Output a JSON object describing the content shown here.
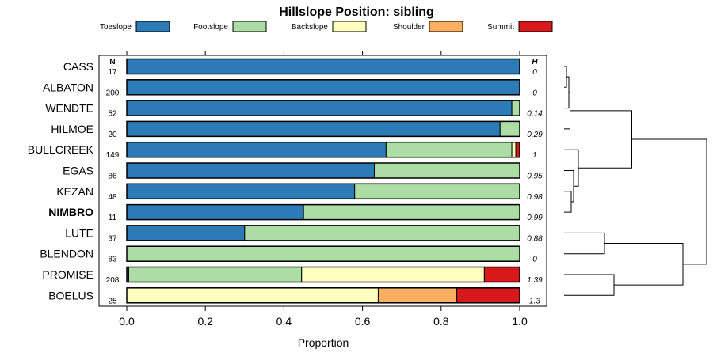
{
  "chart_data": {
    "type": "bar",
    "orientation": "horizontal",
    "stacked": true,
    "title": "Hillslope Position: sibling",
    "xlabel": "Proportion",
    "ylabel": "",
    "xlim": [
      0,
      1
    ],
    "xticks": [
      "0.0",
      "0.2",
      "0.4",
      "0.6",
      "0.8",
      "1.0"
    ],
    "n_header": "N",
    "h_header": "H",
    "legend": [
      {
        "name": "Toeslope",
        "color": "#2c7bb6"
      },
      {
        "name": "Footslope",
        "color": "#abdda4"
      },
      {
        "name": "Backslope",
        "color": "#ffffbf"
      },
      {
        "name": "Shoulder",
        "color": "#fdae61"
      },
      {
        "name": "Summit",
        "color": "#d7191c"
      }
    ],
    "rows": [
      {
        "name": "CASS",
        "n": "17",
        "h": "0",
        "bold": false,
        "values": [
          1.0,
          0,
          0,
          0,
          0
        ]
      },
      {
        "name": "ALBATON",
        "n": "200",
        "h": "0",
        "bold": false,
        "values": [
          1.0,
          0,
          0,
          0,
          0
        ]
      },
      {
        "name": "WENDTE",
        "n": "52",
        "h": "0.14",
        "bold": false,
        "values": [
          0.98,
          0.02,
          0,
          0,
          0
        ]
      },
      {
        "name": "HILMOE",
        "n": "20",
        "h": "0.29",
        "bold": false,
        "values": [
          0.95,
          0.05,
          0,
          0,
          0
        ]
      },
      {
        "name": "BULLCREEK",
        "n": "149",
        "h": "1",
        "bold": false,
        "values": [
          0.66,
          0.32,
          0.01,
          0,
          0.01
        ]
      },
      {
        "name": "EGAS",
        "n": "86",
        "h": "0.95",
        "bold": false,
        "values": [
          0.63,
          0.37,
          0,
          0,
          0
        ]
      },
      {
        "name": "KEZAN",
        "n": "48",
        "h": "0.98",
        "bold": false,
        "values": [
          0.58,
          0.42,
          0,
          0,
          0
        ]
      },
      {
        "name": "NIMBRO",
        "n": "11",
        "h": "0.99",
        "bold": true,
        "values": [
          0.45,
          0.55,
          0,
          0,
          0
        ]
      },
      {
        "name": "LUTE",
        "n": "37",
        "h": "0.88",
        "bold": false,
        "values": [
          0.3,
          0.7,
          0,
          0,
          0
        ]
      },
      {
        "name": "BLENDON",
        "n": "83",
        "h": "0",
        "bold": false,
        "values": [
          0,
          1.0,
          0,
          0,
          0
        ]
      },
      {
        "name": "PROMISE",
        "n": "208",
        "h": "1.39",
        "bold": false,
        "values": [
          0.005,
          0.44,
          0.465,
          0,
          0.09
        ]
      },
      {
        "name": "BOELUS",
        "n": "25",
        "h": "1.3",
        "bold": false,
        "values": [
          0,
          0,
          0.64,
          0.2,
          0.16
        ]
      }
    ],
    "dendrogram": {
      "leaves": [
        "CASS",
        "ALBATON",
        "WENDTE",
        "HILMOE",
        "BULLCREEK",
        "EGAS",
        "KEZAN",
        "NIMBRO",
        "LUTE",
        "BLENDON",
        "PROMISE",
        "BOELUS"
      ],
      "merges": [
        {
          "left": "CASS",
          "right": "ALBATON",
          "height": 0.02
        },
        {
          "left": "m0",
          "right": "WENDTE",
          "height": 0.04
        },
        {
          "left": "m1",
          "right": "HILMOE",
          "height": 0.05
        },
        {
          "left": "KEZAN",
          "right": "NIMBRO",
          "height": 0.06
        },
        {
          "left": "EGAS",
          "right": "m3",
          "height": 0.08
        },
        {
          "left": "BULLCREEK",
          "right": "m4",
          "height": 0.12
        },
        {
          "left": "m2",
          "right": "m5",
          "height": 0.57
        },
        {
          "left": "LUTE",
          "right": "BLENDON",
          "height": 0.34
        },
        {
          "left": "PROMISE",
          "right": "BOELUS",
          "height": 0.42
        },
        {
          "left": "m7",
          "right": "m8",
          "height": 1.0
        },
        {
          "left": "m6",
          "right": "m9",
          "height": 1.2
        }
      ]
    }
  }
}
